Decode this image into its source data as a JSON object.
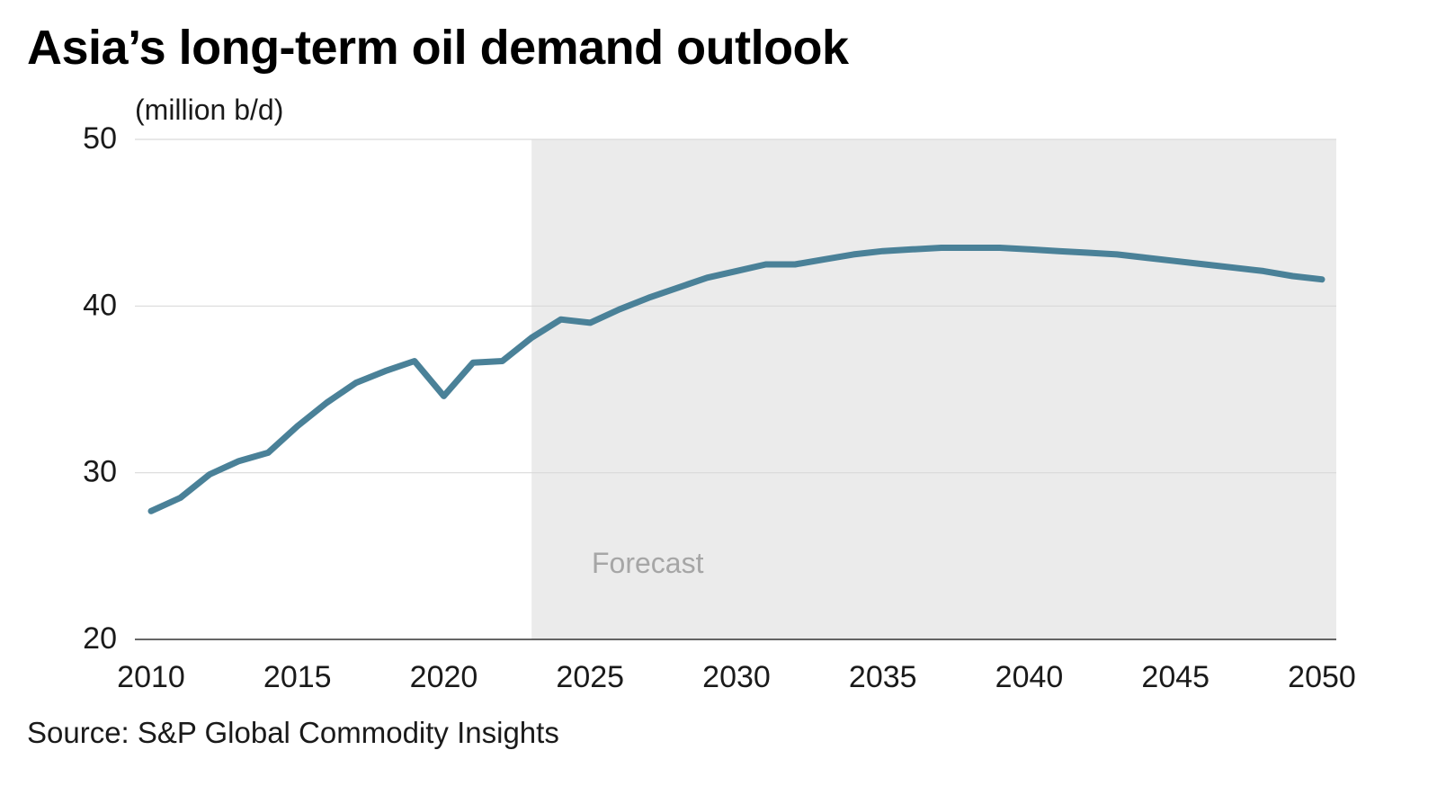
{
  "title": "Asia’s long-term oil demand outlook",
  "unit_label": "(million b/d)",
  "source": "Source: S&P Global Commodity Insights",
  "colors": {
    "line": "#4a8198",
    "forecast_shade": "#ebebeb",
    "grid": "#d9d9d9",
    "axis": "#333333"
  },
  "chart_data": {
    "type": "line",
    "title": "Asia’s long-term oil demand outlook",
    "ylabel": "(million b/d)",
    "xlabel": "",
    "xlim": [
      2010,
      2050
    ],
    "ylim": [
      20,
      50
    ],
    "x_ticks": [
      2010,
      2015,
      2020,
      2025,
      2030,
      2035,
      2040,
      2045,
      2050
    ],
    "y_ticks": [
      20,
      30,
      40,
      50
    ],
    "grid": true,
    "forecast_region": {
      "from": 2023,
      "to": 2050,
      "label": "Forecast"
    },
    "series": [
      {
        "x": [
          2010,
          2011,
          2012,
          2013,
          2014,
          2015,
          2016,
          2017,
          2018,
          2019,
          2020,
          2021,
          2022,
          2023,
          2024,
          2025,
          2026,
          2027,
          2028,
          2029,
          2030,
          2031,
          2032,
          2033,
          2034,
          2035,
          2036,
          2037,
          2038,
          2039,
          2040,
          2041,
          2042,
          2043,
          2044,
          2045,
          2046,
          2047,
          2048,
          2049,
          2050
        ],
        "values": [
          27.7,
          28.5,
          29.9,
          30.7,
          31.2,
          32.8,
          34.2,
          35.4,
          36.1,
          36.7,
          34.6,
          36.6,
          36.7,
          38.1,
          39.2,
          39.0,
          39.8,
          40.5,
          41.1,
          41.7,
          42.1,
          42.5,
          42.5,
          42.8,
          43.1,
          43.3,
          43.4,
          43.5,
          43.5,
          43.5,
          43.4,
          43.3,
          43.2,
          43.1,
          42.9,
          42.7,
          42.5,
          42.3,
          42.1,
          41.8,
          41.6
        ]
      }
    ]
  }
}
